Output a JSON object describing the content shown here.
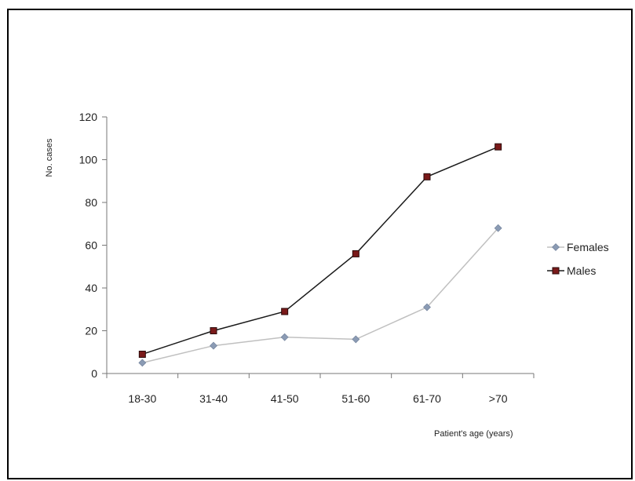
{
  "chart_data": {
    "type": "line",
    "title": "",
    "xlabel": "Patient's age (years)",
    "ylabel": "No. cases",
    "categories": [
      "18-30",
      "31-40",
      "41-50",
      "51-60",
      "61-70",
      ">70"
    ],
    "ylim": [
      0,
      120
    ],
    "yticks": [
      0,
      20,
      40,
      60,
      80,
      100,
      120
    ],
    "grid": false,
    "legend_position": "right",
    "series": [
      {
        "name": "Females",
        "values": [
          5,
          13,
          17,
          16,
          31,
          68
        ],
        "color": "#8b9bb4",
        "line_color": "#c0c0c0",
        "marker": "diamond"
      },
      {
        "name": "Males",
        "values": [
          9,
          20,
          29,
          56,
          92,
          106
        ],
        "color": "#7a1a1a",
        "line_color": "#1a1a1a",
        "marker": "square"
      }
    ]
  }
}
